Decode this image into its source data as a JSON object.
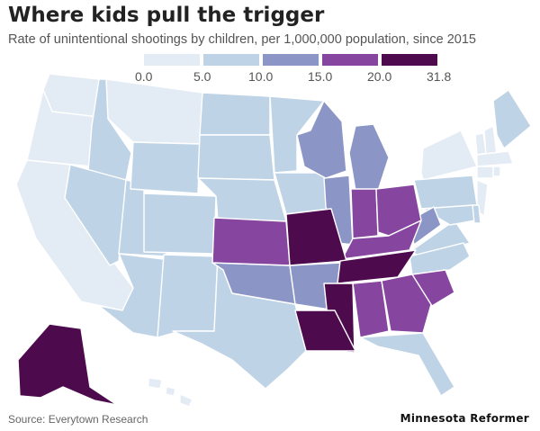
{
  "header": {
    "title": "Where kids pull the trigger",
    "subtitle": "Rate of unintentional shootings by children, per 1,000,000 population, since 2015"
  },
  "legend": {
    "bins": [
      {
        "color": "#e3ebf4"
      },
      {
        "color": "#bfd3e6"
      },
      {
        "color": "#8c96c6"
      },
      {
        "color": "#86459e"
      },
      {
        "color": "#4d0b4d"
      }
    ],
    "tick_labels": [
      "0.0",
      "5.0",
      "10.0",
      "15.0",
      "20.0",
      "31.8"
    ]
  },
  "chart_data": {
    "type": "choropleth",
    "title": "Where kids pull the trigger",
    "subtitle": "Rate of unintentional shootings by children, per 1,000,000 population, since 2015",
    "legend_thresholds": [
      0.0,
      5.0,
      10.0,
      15.0,
      20.0,
      31.8
    ],
    "state_bins": {
      "WA": 0,
      "OR": 0,
      "CA": 0,
      "MT": 0,
      "NY": 0,
      "VT": 0,
      "NH": 0,
      "MA": 0,
      "CT": 0,
      "RI": 0,
      "NJ": 0,
      "HI": 0,
      "ID": 1,
      "NV": 1,
      "UT": 1,
      "AZ": 1,
      "WY": 1,
      "CO": 1,
      "NM": 1,
      "ND": 1,
      "SD": 1,
      "NE": 1,
      "MN": 1,
      "IA": 1,
      "TX": 1,
      "FL": 1,
      "PA": 1,
      "VA": 1,
      "NC": 1,
      "ME": 1,
      "MD": 1,
      "DE": 1,
      "WI": 2,
      "MI": 2,
      "IL": 2,
      "OK": 2,
      "AR": 2,
      "WV": 2,
      "KS": 3,
      "IN": 3,
      "OH": 3,
      "KY": 3,
      "AL": 3,
      "GA": 3,
      "SC": 3,
      "MO": 4,
      "TN": 4,
      "MS": 4,
      "LA": 4,
      "AK": 4
    }
  },
  "footer": {
    "source": "Source: Everytown Research",
    "brand": "Minnesota Reformer"
  }
}
